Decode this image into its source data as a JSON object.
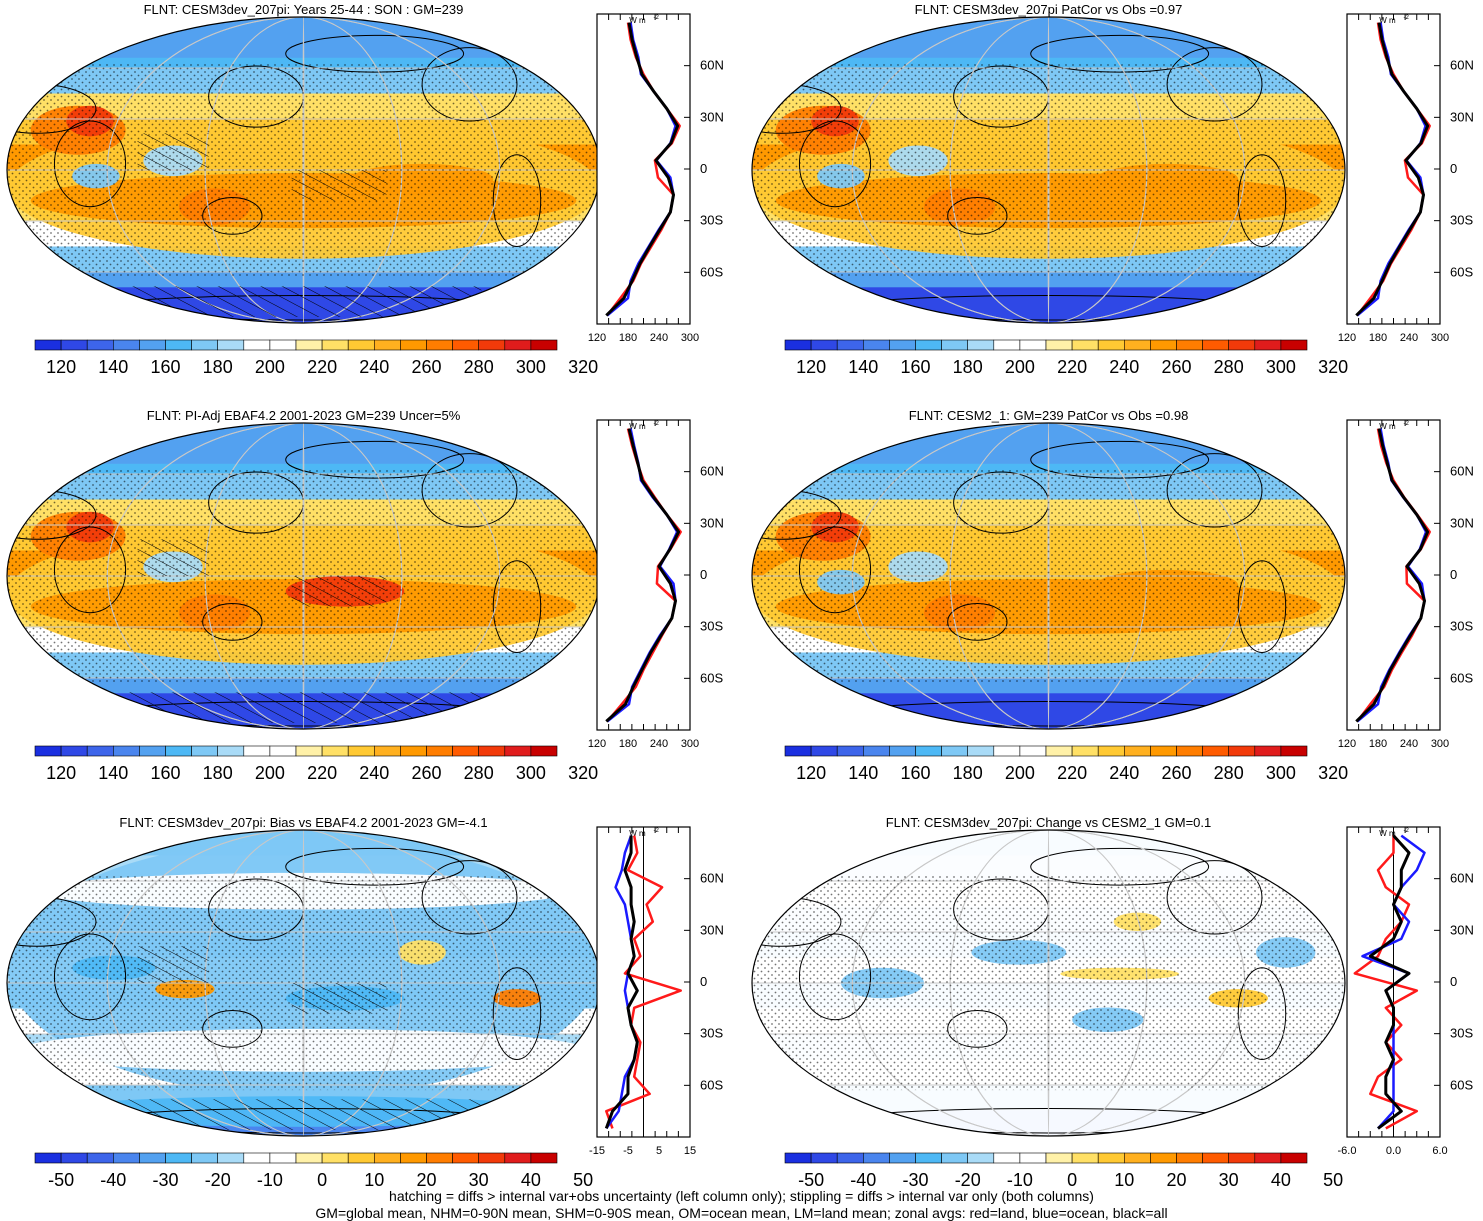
{
  "colors": {
    "abs_levels": [
      "#1a2fe0",
      "#2f48e6",
      "#3d65ea",
      "#4a85ee",
      "#53a1f0",
      "#4db8f5",
      "#7ec8f5",
      "#a9dbf7",
      "#ffffff",
      "#ffffff",
      "#fff1a8",
      "#ffe066",
      "#ffc933",
      "#ffb01f",
      "#ff9900",
      "#ff7d00",
      "#ff5b00",
      "#f23a0a",
      "#e01c1c",
      "#c80000"
    ],
    "diff_levels": [
      "#1a2fe0",
      "#2f48e6",
      "#3d65ea",
      "#4a85ee",
      "#53a1f0",
      "#4db8f5",
      "#7ec8f5",
      "#a9dbf7",
      "#ffffff",
      "#ffffff",
      "#fff1a8",
      "#ffe066",
      "#ffc933",
      "#ffb01f",
      "#ff9900",
      "#ff7d00",
      "#ff5b00",
      "#f23a0a",
      "#e01c1c",
      "#c80000"
    ],
    "land": "#cfcfcf",
    "zonal_land": "#ff1a1a",
    "zonal_ocean": "#1a1aff",
    "zonal_all": "#000000"
  },
  "panels": [
    {
      "title": "FLNT: CESM3dev_207pi: Years 25-44 : SON : GM=239",
      "kind": "abs",
      "pattern": "model",
      "colorbar": {
        "labels": [
          "120",
          "140",
          "160",
          "180",
          "200",
          "220",
          "240",
          "260",
          "280",
          "300",
          "320"
        ]
      },
      "zonal": {
        "unit": "W m",
        "xticks": [
          "120",
          "180",
          "240",
          "300"
        ],
        "xlim": [
          120,
          300
        ],
        "lat_labels": [
          "60N",
          "30N",
          "0",
          "30S",
          "60S"
        ]
      }
    },
    {
      "title": "FLNT: CESM3dev_207pi PatCor vs Obs =0.97",
      "kind": "abs",
      "pattern": "model",
      "colorbar": {
        "labels": [
          "120",
          "140",
          "160",
          "180",
          "200",
          "220",
          "240",
          "260",
          "280",
          "300",
          "320"
        ]
      },
      "zonal": {
        "unit": "W m",
        "xticks": [
          "120",
          "180",
          "240",
          "300"
        ],
        "xlim": [
          120,
          300
        ],
        "lat_labels": [
          "60N",
          "30N",
          "0",
          "30S",
          "60S"
        ]
      }
    },
    {
      "title": "FLNT: PI-Adj EBAF4.2 2001-2023 GM=239 Uncer=5%",
      "kind": "abs",
      "pattern": "obs",
      "colorbar": {
        "labels": [
          "120",
          "140",
          "160",
          "180",
          "200",
          "220",
          "240",
          "260",
          "280",
          "300",
          "320"
        ]
      },
      "zonal": {
        "unit": "W m",
        "xticks": [
          "120",
          "180",
          "240",
          "300"
        ],
        "xlim": [
          120,
          300
        ],
        "lat_labels": [
          "60N",
          "30N",
          "0",
          "30S",
          "60S"
        ]
      }
    },
    {
      "title": "FLNT: CESM2_1: GM=239 PatCor vs Obs =0.98",
      "kind": "abs",
      "pattern": "model",
      "colorbar": {
        "labels": [
          "120",
          "140",
          "160",
          "180",
          "200",
          "220",
          "240",
          "260",
          "280",
          "300",
          "320"
        ]
      },
      "zonal": {
        "unit": "W m",
        "xticks": [
          "120",
          "180",
          "240",
          "300"
        ],
        "xlim": [
          120,
          300
        ],
        "lat_labels": [
          "60N",
          "30N",
          "0",
          "30S",
          "60S"
        ]
      }
    },
    {
      "title": "FLNT: CESM3dev_207pi: Bias vs EBAF4.2 2001-2023  GM=-4.1",
      "kind": "diff",
      "pattern": "bias",
      "colorbar": {
        "labels": [
          "-50",
          "-40",
          "-30",
          "-20",
          "-10",
          "0",
          "10",
          "20",
          "30",
          "40",
          "50"
        ]
      },
      "zonal": {
        "unit": "W m",
        "xticks": [
          "-15",
          "-5",
          "5",
          "15"
        ],
        "xlim": [
          -15,
          15
        ],
        "lat_labels": [
          "60N",
          "30N",
          "0",
          "30S",
          "60S"
        ]
      }
    },
    {
      "title": "FLNT: CESM3dev_207pi: Change vs CESM2_1 GM=0.1",
      "kind": "diff",
      "pattern": "change",
      "colorbar": {
        "labels": [
          "-50",
          "-40",
          "-30",
          "-20",
          "-10",
          "0",
          "10",
          "20",
          "30",
          "40",
          "50"
        ]
      },
      "zonal": {
        "unit": "W m",
        "xticks": [
          "-6.0",
          "0.0",
          "6.0"
        ],
        "xlim": [
          -6,
          6
        ],
        "lat_labels": [
          "60N",
          "30N",
          "0",
          "30S",
          "60S"
        ]
      }
    }
  ],
  "footer": {
    "line1": "hatching = diffs > internal var+obs uncertainty (left column only); stippling = diffs > internal var only (both columns)",
    "line2": "GM=global mean, NHM=0-90N mean, SHM=0-90S mean, OM=ocean mean, LM=land mean; zonal avgs: red=land, blue=ocean, black=all"
  },
  "chart_data": [
    {
      "type": "line",
      "title": "FLNT: CESM3dev_207pi: Years 25-44 : SON : GM=239",
      "xlabel": "W m-2",
      "xlim": [
        120,
        300
      ],
      "ylim": [
        -90,
        90
      ],
      "y": [
        -85,
        -75,
        -65,
        -55,
        -45,
        -35,
        -25,
        -15,
        -5,
        5,
        15,
        25,
        35,
        45,
        55,
        65,
        75,
        85
      ],
      "series": [
        {
          "name": "red=land",
          "values": [
            140,
            165,
            190,
            205,
            225,
            245,
            262,
            268,
            238,
            232,
            265,
            280,
            255,
            230,
            210,
            195,
            185,
            180
          ]
        },
        {
          "name": "blue=ocean",
          "values": [
            140,
            180,
            185,
            200,
            220,
            240,
            262,
            268,
            262,
            235,
            262,
            272,
            255,
            230,
            205,
            200,
            190,
            185
          ]
        },
        {
          "name": "black=all",
          "values": [
            138,
            172,
            188,
            203,
            222,
            242,
            262,
            268,
            258,
            234,
            263,
            276,
            255,
            230,
            207,
            197,
            188,
            182
          ]
        }
      ]
    },
    {
      "type": "line",
      "title": "FLNT: CESM3dev_207pi PatCor vs Obs =0.97",
      "xlabel": "W m-2",
      "xlim": [
        120,
        300
      ],
      "ylim": [
        -90,
        90
      ],
      "y": [
        -85,
        -75,
        -65,
        -55,
        -45,
        -35,
        -25,
        -15,
        -5,
        5,
        15,
        25,
        35,
        45,
        55,
        65,
        75,
        85
      ],
      "series": [
        {
          "name": "red=land",
          "values": [
            140,
            165,
            190,
            205,
            225,
            245,
            262,
            268,
            238,
            232,
            265,
            280,
            255,
            230,
            210,
            195,
            185,
            180
          ]
        },
        {
          "name": "blue=ocean",
          "values": [
            140,
            180,
            185,
            200,
            220,
            240,
            262,
            268,
            262,
            235,
            262,
            272,
            255,
            230,
            205,
            200,
            190,
            185
          ]
        },
        {
          "name": "black=all",
          "values": [
            138,
            172,
            188,
            203,
            222,
            242,
            262,
            268,
            258,
            234,
            263,
            276,
            255,
            230,
            207,
            197,
            188,
            182
          ]
        }
      ]
    },
    {
      "type": "line",
      "title": "FLNT: PI-Adj EBAF4.2 2001-2023 GM=239 Uncer=5%",
      "xlabel": "W m-2",
      "xlim": [
        120,
        300
      ],
      "ylim": [
        -90,
        90
      ],
      "y": [
        -85,
        -75,
        -65,
        -55,
        -45,
        -35,
        -25,
        -15,
        -5,
        5,
        15,
        25,
        35,
        45,
        55,
        65,
        75,
        85
      ],
      "series": [
        {
          "name": "red=land",
          "values": [
            140,
            168,
            195,
            210,
            228,
            246,
            265,
            272,
            236,
            238,
            262,
            282,
            255,
            232,
            210,
            198,
            188,
            180
          ]
        },
        {
          "name": "blue=ocean",
          "values": [
            140,
            182,
            188,
            205,
            222,
            242,
            265,
            272,
            268,
            242,
            260,
            275,
            255,
            228,
            205,
            200,
            192,
            185
          ]
        },
        {
          "name": "black=all",
          "values": [
            138,
            175,
            190,
            207,
            224,
            244,
            265,
            272,
            262,
            240,
            261,
            278,
            255,
            230,
            207,
            199,
            190,
            182
          ]
        }
      ]
    },
    {
      "type": "line",
      "title": "FLNT: CESM2_1: GM=239 PatCor vs Obs =0.98",
      "xlabel": "W m-2",
      "xlim": [
        120,
        300
      ],
      "ylim": [
        -90,
        90
      ],
      "y": [
        -85,
        -75,
        -65,
        -55,
        -45,
        -35,
        -25,
        -15,
        -5,
        5,
        15,
        25,
        35,
        45,
        55,
        65,
        75,
        85
      ],
      "series": [
        {
          "name": "red=land",
          "values": [
            140,
            165,
            192,
            207,
            226,
            246,
            263,
            270,
            236,
            235,
            263,
            280,
            256,
            231,
            210,
            196,
            186,
            180
          ]
        },
        {
          "name": "blue=ocean",
          "values": [
            140,
            180,
            186,
            202,
            221,
            241,
            263,
            270,
            265,
            238,
            261,
            273,
            255,
            229,
            206,
            200,
            191,
            185
          ]
        },
        {
          "name": "black=all",
          "values": [
            138,
            172,
            189,
            204,
            223,
            243,
            263,
            270,
            260,
            236,
            262,
            276,
            255,
            230,
            207,
            198,
            189,
            182
          ]
        }
      ]
    },
    {
      "type": "line",
      "title": "FLNT: CESM3dev_207pi: Bias vs EBAF4.2 2001-2023  GM=-4.1",
      "xlabel": "W m-2",
      "xlim": [
        -15,
        15
      ],
      "ylim": [
        -90,
        90
      ],
      "y": [
        -85,
        -75,
        -65,
        -55,
        -45,
        -35,
        -25,
        -15,
        -5,
        5,
        15,
        25,
        35,
        45,
        55,
        65,
        75,
        85
      ],
      "series": [
        {
          "name": "red=land",
          "values": [
            -10,
            -12,
            2,
            -3,
            -2,
            -1,
            -4,
            -3,
            12,
            -6,
            -1,
            -3,
            3,
            1,
            6,
            -5,
            -2,
            -3
          ]
        },
        {
          "name": "blue=ocean",
          "values": [
            -12,
            -8,
            -7,
            -6,
            -3,
            -2,
            -4,
            -5,
            -6,
            -5,
            -3,
            -4,
            -5,
            -6,
            -9,
            -7,
            -6,
            -4
          ]
        },
        {
          "name": "black=all",
          "values": [
            -12,
            -10,
            -5,
            -5,
            -3,
            -2,
            -4,
            -5,
            -2,
            -5,
            -3,
            -4,
            -3,
            -4,
            -4,
            -6,
            -4,
            -4
          ]
        }
      ]
    },
    {
      "type": "line",
      "title": "FLNT: CESM3dev_207pi: Change vs CESM2_1 GM=0.1",
      "xlabel": "W m-2",
      "xlim": [
        -6,
        6
      ],
      "ylim": [
        -90,
        90
      ],
      "y": [
        -85,
        -75,
        -65,
        -55,
        -45,
        -35,
        -25,
        -15,
        -5,
        5,
        15,
        25,
        35,
        45,
        55,
        65,
        75,
        85
      ],
      "series": [
        {
          "name": "red=land",
          "values": [
            -1,
            3,
            -3,
            -2,
            1,
            -1,
            1,
            -1,
            3,
            -5,
            -2,
            -1,
            1,
            2,
            -1,
            -2,
            0,
            0
          ]
        },
        {
          "name": "blue=ocean",
          "values": [
            -2,
            0,
            0,
            0,
            0,
            0,
            0,
            0,
            -1,
            2,
            -4,
            1,
            2,
            0,
            1,
            3,
            4,
            1
          ]
        },
        {
          "name": "black=all",
          "values": [
            -2,
            1,
            -1,
            -1,
            0,
            -1,
            0,
            0,
            -1,
            2,
            -3,
            0,
            1,
            0,
            1,
            1,
            2,
            0
          ]
        }
      ]
    }
  ]
}
